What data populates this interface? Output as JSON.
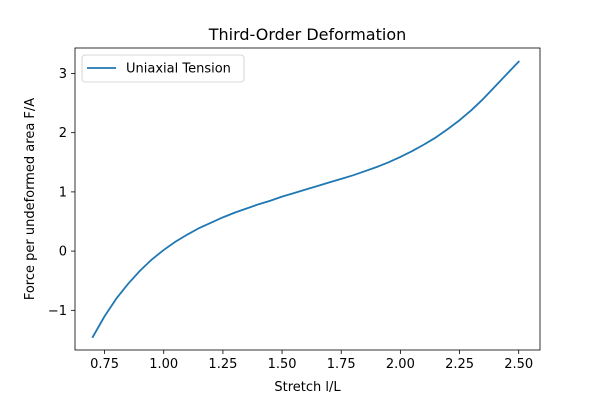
{
  "chart_data": {
    "type": "line",
    "title": "Third-Order Deformation",
    "xlabel": "Stretch l/L",
    "ylabel": "Force per undeformed area F/A",
    "xlim": [
      0.625,
      2.59
    ],
    "ylim": [
      -1.67,
      3.43
    ],
    "xticks": [
      0.75,
      1.0,
      1.25,
      1.5,
      1.75,
      2.0,
      2.25,
      2.5
    ],
    "xtick_labels": [
      "0.75",
      "1.00",
      "1.25",
      "1.50",
      "1.75",
      "2.00",
      "2.25",
      "2.50"
    ],
    "yticks": [
      -1,
      0,
      1,
      2,
      3
    ],
    "ytick_labels": [
      "−1",
      "0",
      "1",
      "2",
      "3"
    ],
    "grid": false,
    "legend_position": "top-left",
    "series": [
      {
        "name": "Uniaxial Tension",
        "color": "#1f77b4",
        "x": [
          0.7,
          0.75,
          0.8,
          0.85,
          0.9,
          0.95,
          1.0,
          1.05,
          1.1,
          1.15,
          1.2,
          1.25,
          1.3,
          1.35,
          1.4,
          1.45,
          1.5,
          1.55,
          1.6,
          1.65,
          1.7,
          1.75,
          1.8,
          1.85,
          1.9,
          1.95,
          2.0,
          2.05,
          2.1,
          2.15,
          2.2,
          2.25,
          2.3,
          2.35,
          2.4,
          2.45,
          2.5
        ],
        "y": [
          -1.45,
          -1.1,
          -0.8,
          -0.55,
          -0.33,
          -0.14,
          0.02,
          0.16,
          0.28,
          0.39,
          0.48,
          0.57,
          0.65,
          0.72,
          0.79,
          0.85,
          0.92,
          0.98,
          1.04,
          1.1,
          1.16,
          1.22,
          1.28,
          1.35,
          1.42,
          1.5,
          1.59,
          1.69,
          1.8,
          1.92,
          2.06,
          2.21,
          2.38,
          2.57,
          2.78,
          2.99,
          3.2
        ]
      }
    ]
  }
}
